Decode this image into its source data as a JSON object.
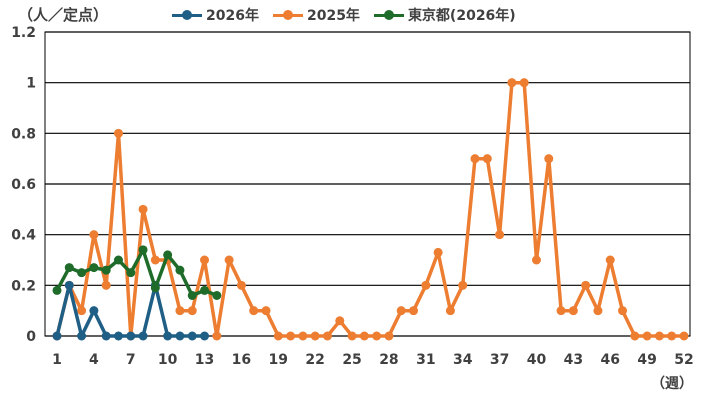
{
  "chart_data": {
    "type": "line",
    "ylabel": "（人／定点）",
    "xlabel": "（週）",
    "ylim": [
      0,
      1.2
    ],
    "yticks": [
      "0",
      "0.2",
      "0.4",
      "0.6",
      "0.8",
      "1",
      "1.2"
    ],
    "xlim": [
      1,
      52
    ],
    "xticks": [
      1,
      4,
      7,
      10,
      13,
      16,
      19,
      22,
      25,
      28,
      31,
      34,
      37,
      40,
      43,
      46,
      49,
      52
    ],
    "grid": true,
    "legend_position": "top",
    "series": [
      {
        "name": "2026年",
        "color": "#1f5f86",
        "x": [
          1,
          2,
          3,
          4,
          5,
          6,
          7,
          8,
          9,
          10,
          11,
          12,
          13
        ],
        "values": [
          0,
          0.2,
          0,
          0.1,
          0,
          0,
          0,
          0,
          0.2,
          0,
          0,
          0,
          0
        ]
      },
      {
        "name": "2025年",
        "color": "#ed7d31",
        "x": [
          1,
          2,
          3,
          4,
          5,
          6,
          7,
          8,
          9,
          10,
          11,
          12,
          13,
          14,
          15,
          16,
          17,
          18,
          19,
          20,
          21,
          22,
          23,
          24,
          25,
          26,
          27,
          28,
          29,
          30,
          31,
          32,
          33,
          34,
          35,
          36,
          37,
          38,
          39,
          40,
          41,
          42,
          43,
          44,
          45,
          46,
          47,
          48,
          49,
          50,
          51,
          52
        ],
        "values": [
          0,
          0.2,
          0.1,
          0.4,
          0.2,
          0.8,
          0,
          0.5,
          0.3,
          0.3,
          0.1,
          0.1,
          0.3,
          0,
          0.3,
          0.2,
          0.1,
          0.1,
          0,
          0,
          0,
          0,
          0,
          0.06,
          0,
          0,
          0,
          0,
          0.1,
          0.1,
          0.2,
          0.33,
          0.1,
          0.2,
          0.7,
          0.7,
          0.4,
          1.0,
          1.0,
          0.3,
          0.7,
          0.1,
          0.1,
          0.2,
          0.1,
          0.3,
          0.1,
          0,
          0,
          0,
          0,
          0
        ]
      },
      {
        "name": "東京都(2026年)",
        "color": "#1e6b2a",
        "x": [
          1,
          2,
          3,
          4,
          5,
          6,
          7,
          8,
          9,
          10,
          11,
          12,
          13,
          14
        ],
        "values": [
          0.18,
          0.27,
          0.25,
          0.27,
          0.26,
          0.3,
          0.25,
          0.34,
          0.19,
          0.32,
          0.26,
          0.16,
          0.18,
          0.16
        ]
      }
    ]
  }
}
